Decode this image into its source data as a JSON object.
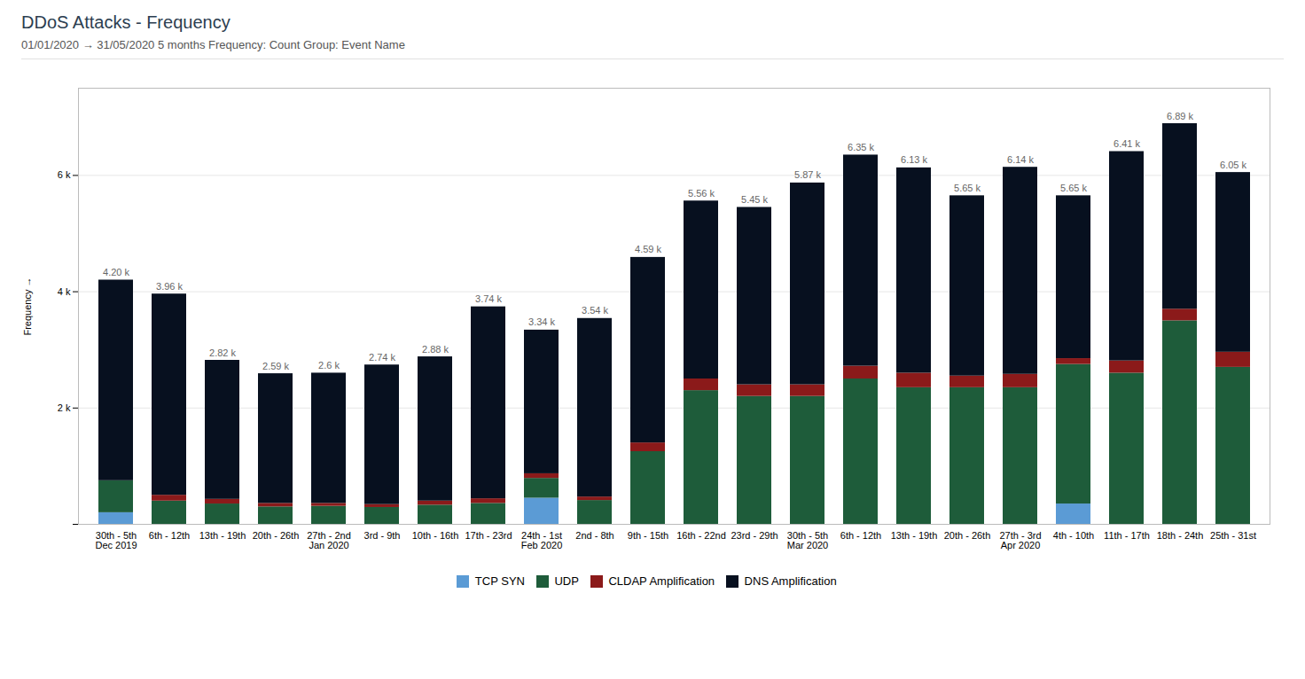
{
  "chart_data": {
    "type": "bar",
    "stacked": true,
    "title": "DDoS Attacks - Frequency",
    "subtitle": "01/01/2020  →  31/05/2020    5 months    Frequency: Count    Group: Event Name",
    "ylabel": "Frequency",
    "categories": [
      "30th - 5th\nDec 2019",
      "6th - 12th",
      "13th - 19th",
      "20th - 26th",
      "27th - 2nd\nJan 2020",
      "3rd - 9th",
      "10th - 16th",
      "17th - 23rd",
      "24th - 1st\nFeb 2020",
      "2nd - 8th",
      "9th - 15th",
      "16th - 22nd",
      "23rd - 29th",
      "30th - 5th\nMar 2020",
      "6th - 12th",
      "13th - 19th",
      "20th - 26th",
      "27th - 3rd\nApr 2020",
      "4th - 10th",
      "11th - 17th",
      "18th - 24th",
      "25th - 31st"
    ],
    "series": [
      {
        "name": "TCP SYN",
        "color": "#5b9bd5",
        "values": [
          200,
          0,
          0,
          0,
          0,
          0,
          0,
          0,
          450,
          0,
          0,
          0,
          0,
          0,
          0,
          0,
          0,
          0,
          350,
          0,
          0,
          0
        ]
      },
      {
        "name": "UDP",
        "color": "#1e5c3a",
        "values": [
          550,
          400,
          350,
          300,
          310,
          290,
          330,
          360,
          340,
          410,
          1250,
          2300,
          2200,
          2200,
          2500,
          2350,
          2350,
          2350,
          2400,
          2600,
          3500,
          2700
        ]
      },
      {
        "name": "CLDAP Amplification",
        "color": "#8b1a1a",
        "values": [
          0,
          100,
          80,
          60,
          50,
          50,
          70,
          80,
          80,
          60,
          150,
          200,
          200,
          200,
          220,
          250,
          200,
          230,
          100,
          210,
          200,
          260
        ]
      },
      {
        "name": "DNS Amplification",
        "color": "#07101f",
        "values": [
          3450,
          3460,
          2390,
          2230,
          2240,
          2400,
          2480,
          3300,
          2470,
          3070,
          3190,
          3060,
          3050,
          3470,
          3630,
          3530,
          3100,
          3560,
          2800,
          3600,
          3190,
          3090
        ]
      }
    ],
    "totals": [
      4200,
      3960,
      2820,
      2590,
      2600,
      2740,
      2880,
      3740,
      3340,
      3540,
      4590,
      5560,
      5450,
      5870,
      6350,
      6130,
      5650,
      6140,
      5650,
      6410,
      6890,
      6050
    ],
    "total_labels": [
      "4.20 k",
      "3.96 k",
      "2.82 k",
      "2.59 k",
      "2.6 k",
      "2.74 k",
      "2.88 k",
      "3.74 k",
      "3.34 k",
      "3.54 k",
      "4.59 k",
      "5.56 k",
      "5.45 k",
      "5.87 k",
      "6.35 k",
      "6.13 k",
      "5.65 k",
      "6.14 k",
      "5.65 k",
      "6.41 k",
      "6.89 k",
      "6.05 k"
    ],
    "ylim": [
      0,
      7500
    ],
    "yticks": [
      {
        "value": 0,
        "label": ""
      },
      {
        "value": 2000,
        "label": "2 k"
      },
      {
        "value": 4000,
        "label": "4 k"
      },
      {
        "value": 6000,
        "label": "6 k"
      }
    ],
    "grid": true,
    "legend": "bottom"
  }
}
